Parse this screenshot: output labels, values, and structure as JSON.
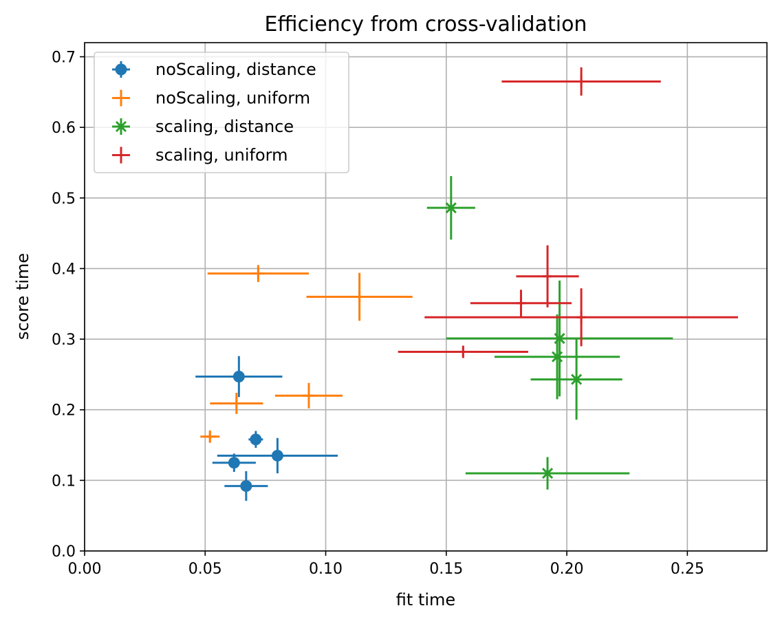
{
  "chart_data": {
    "type": "scatter",
    "title": "Efficiency from cross-validation",
    "xlabel": "fit time",
    "ylabel": "score time",
    "xlim": [
      0.0,
      0.283
    ],
    "ylim": [
      0.0,
      0.72
    ],
    "x_ticks": [
      0.0,
      0.05,
      0.1,
      0.15,
      0.2,
      0.25
    ],
    "x_tick_labels": [
      "0.00",
      "0.05",
      "0.10",
      "0.15",
      "0.20",
      "0.25"
    ],
    "y_ticks": [
      0.0,
      0.1,
      0.2,
      0.3,
      0.4,
      0.5,
      0.6,
      0.7
    ],
    "y_tick_labels": [
      "0.0",
      "0.1",
      "0.2",
      "0.3",
      "0.4",
      "0.5",
      "0.6",
      "0.7"
    ],
    "grid": true,
    "legend_position": "top-left",
    "series": [
      {
        "name": "noScaling, distance",
        "color": "#1f77b4",
        "marker": "circle",
        "points": [
          {
            "x": 0.064,
            "y": 0.247,
            "xerr": 0.018,
            "yerr": 0.029
          },
          {
            "x": 0.071,
            "y": 0.158,
            "xerr": 0.003,
            "yerr": 0.012
          },
          {
            "x": 0.08,
            "y": 0.135,
            "xerr": 0.025,
            "yerr": 0.025
          },
          {
            "x": 0.062,
            "y": 0.125,
            "xerr": 0.009,
            "yerr": 0.013
          },
          {
            "x": 0.067,
            "y": 0.092,
            "xerr": 0.009,
            "yerr": 0.021
          }
        ]
      },
      {
        "name": "noScaling, uniform",
        "color": "#ff7f0e",
        "marker": "plus",
        "points": [
          {
            "x": 0.072,
            "y": 0.393,
            "xerr": 0.021,
            "yerr": 0.012
          },
          {
            "x": 0.114,
            "y": 0.36,
            "xerr": 0.022,
            "yerr": 0.034
          },
          {
            "x": 0.063,
            "y": 0.209,
            "xerr": 0.011,
            "yerr": 0.015
          },
          {
            "x": 0.093,
            "y": 0.22,
            "xerr": 0.014,
            "yerr": 0.018
          },
          {
            "x": 0.052,
            "y": 0.162,
            "xerr": 0.004,
            "yerr": 0.007
          }
        ]
      },
      {
        "name": "scaling, distance",
        "color": "#2ca02c",
        "marker": "x",
        "points": [
          {
            "x": 0.152,
            "y": 0.486,
            "xerr": 0.01,
            "yerr": 0.045
          },
          {
            "x": 0.197,
            "y": 0.301,
            "xerr": 0.047,
            "yerr": 0.082
          },
          {
            "x": 0.196,
            "y": 0.275,
            "xerr": 0.026,
            "yerr": 0.06
          },
          {
            "x": 0.204,
            "y": 0.243,
            "xerr": 0.019,
            "yerr": 0.057
          },
          {
            "x": 0.192,
            "y": 0.11,
            "xerr": 0.034,
            "yerr": 0.023
          }
        ]
      },
      {
        "name": "scaling, uniform",
        "color": "#d62728",
        "marker": "tick",
        "points": [
          {
            "x": 0.206,
            "y": 0.665,
            "xerr": 0.033,
            "yerr": 0.02
          },
          {
            "x": 0.192,
            "y": 0.389,
            "xerr": 0.013,
            "yerr": 0.044
          },
          {
            "x": 0.181,
            "y": 0.351,
            "xerr": 0.021,
            "yerr": 0.019
          },
          {
            "x": 0.206,
            "y": 0.331,
            "xerr": 0.065,
            "yerr": 0.041
          },
          {
            "x": 0.157,
            "y": 0.282,
            "xerr": 0.027,
            "yerr": 0.007
          }
        ]
      }
    ]
  }
}
